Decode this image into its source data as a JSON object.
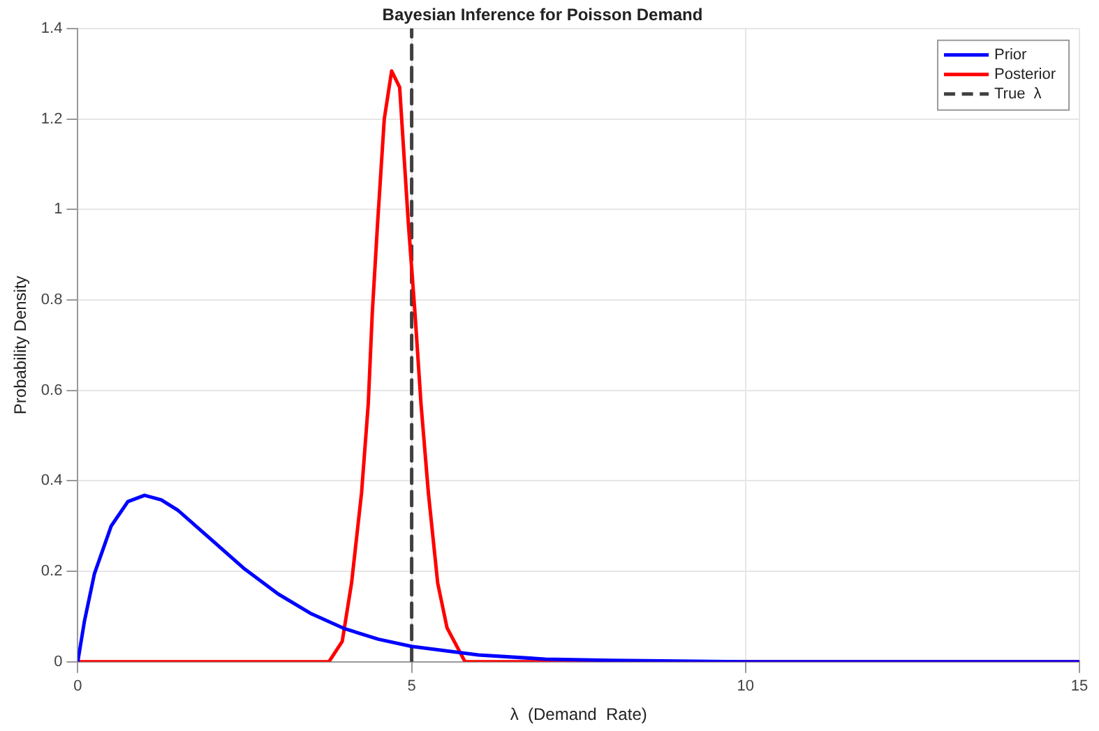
{
  "chart_data": {
    "type": "line",
    "title": "Bayesian Inference for Poisson Demand",
    "xlabel": "λ  (Demand  Rate)",
    "ylabel": "Probability Density",
    "xlim": [
      0,
      15
    ],
    "xticks": [
      0,
      5,
      10,
      15
    ],
    "ylim": [
      0,
      1.4
    ],
    "yticks": [
      0,
      0.2,
      0.4,
      0.6,
      0.8,
      1,
      1.2,
      1.4
    ],
    "grid": true,
    "legend": "top right",
    "marker": "none",
    "line_style": "solid",
    "series": [
      {
        "name": "Prior",
        "color": "#0000ff",
        "x": [
          0,
          0.1,
          0.25,
          0.5,
          0.75,
          1,
          1.25,
          1.5,
          2,
          2.5,
          3,
          3.5,
          4,
          4.5,
          5,
          6,
          7,
          8,
          10,
          12,
          15
        ],
        "values": [
          0,
          0.09,
          0.195,
          0.3,
          0.354,
          0.368,
          0.358,
          0.335,
          0.27,
          0.205,
          0.15,
          0.106,
          0.073,
          0.05,
          0.034,
          0.015,
          0.006,
          0.003,
          0,
          0,
          0
        ]
      },
      {
        "name": "Posterior",
        "color": "#ff0000",
        "x": [
          0,
          3.6,
          3.76,
          3.96,
          4.1,
          4.25,
          4.35,
          4.41,
          4.49,
          4.59,
          4.7,
          4.82,
          4.95,
          5.05,
          5.14,
          5.25,
          5.39,
          5.53,
          5.8,
          6,
          15
        ],
        "values": [
          0,
          0,
          0,
          0.045,
          0.174,
          0.374,
          0.57,
          0.77,
          0.97,
          1.2,
          1.306,
          1.27,
          0.97,
          0.77,
          0.57,
          0.374,
          0.174,
          0.075,
          0,
          0,
          0
        ]
      },
      {
        "name": "True  λ",
        "color": "#404040",
        "line_style": "dashed",
        "x": [
          5,
          5
        ],
        "values": [
          0,
          1.4
        ]
      }
    ]
  }
}
